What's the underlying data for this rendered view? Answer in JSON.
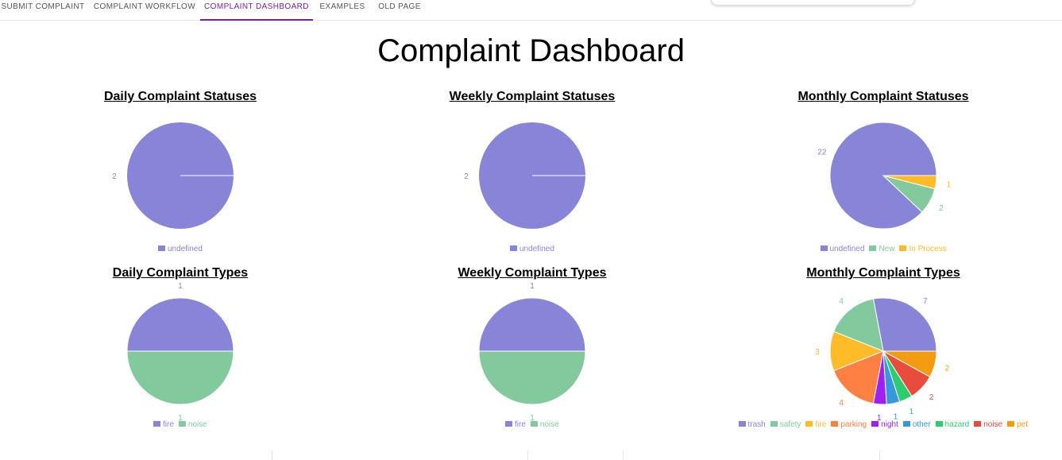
{
  "nav": {
    "tabs": [
      {
        "label": "SUBMIT COMPLAINT",
        "active": false
      },
      {
        "label": "COMPLAINT WORKFLOW",
        "active": false
      },
      {
        "label": "COMPLAINT DASHBOARD",
        "active": true
      },
      {
        "label": "EXAMPLES",
        "active": false
      },
      {
        "label": "OLD PAGE",
        "active": false
      }
    ]
  },
  "page": {
    "title": "Complaint Dashboard"
  },
  "colors": {
    "purple": "#8884d8",
    "green": "#82ca9d",
    "yellow": "#ffbb28",
    "orange": "#ff8042",
    "violet": "#a020f0",
    "blue": "#3498db",
    "emerald": "#2ecc71",
    "red": "#e74c3c",
    "amber": "#f39c12"
  },
  "chart_data": [
    {
      "id": "daily-statuses",
      "type": "pie",
      "title": "Daily Complaint Statuses",
      "slices": [
        {
          "name": "undefined",
          "value": 2,
          "color": "#8884d8"
        }
      ]
    },
    {
      "id": "weekly-statuses",
      "type": "pie",
      "title": "Weekly Complaint Statuses",
      "slices": [
        {
          "name": "undefined",
          "value": 2,
          "color": "#8884d8"
        }
      ]
    },
    {
      "id": "monthly-statuses",
      "type": "pie",
      "title": "Monthly Complaint Statuses",
      "slices": [
        {
          "name": "undefined",
          "value": 22,
          "color": "#8884d8"
        },
        {
          "name": "New",
          "value": 2,
          "color": "#82ca9d"
        },
        {
          "name": "In Process",
          "value": 1,
          "color": "#ffbb28"
        }
      ]
    },
    {
      "id": "daily-types",
      "type": "pie",
      "title": "Daily Complaint Types",
      "slices": [
        {
          "name": "fire",
          "value": 1,
          "color": "#8884d8"
        },
        {
          "name": "noise",
          "value": 1,
          "color": "#82ca9d"
        }
      ]
    },
    {
      "id": "weekly-types",
      "type": "pie",
      "title": "Weekly Complaint Types",
      "slices": [
        {
          "name": "fire",
          "value": 1,
          "color": "#8884d8"
        },
        {
          "name": "noise",
          "value": 1,
          "color": "#82ca9d"
        }
      ]
    },
    {
      "id": "monthly-types",
      "type": "pie",
      "title": "Monthly Complaint Types",
      "slices": [
        {
          "name": "trash",
          "value": 7,
          "color": "#8884d8"
        },
        {
          "name": "safety",
          "value": 4,
          "color": "#82ca9d"
        },
        {
          "name": "fire",
          "value": 3,
          "color": "#ffbb28"
        },
        {
          "name": "parking",
          "value": 4,
          "color": "#ff8042"
        },
        {
          "name": "night",
          "value": 1,
          "color": "#a020f0"
        },
        {
          "name": "other",
          "value": 1,
          "color": "#3498db"
        },
        {
          "name": "hazard",
          "value": 1,
          "color": "#2ecc71"
        },
        {
          "name": "noise",
          "value": 2,
          "color": "#e74c3c"
        },
        {
          "name": "pet",
          "value": 2,
          "color": "#f39c12"
        }
      ]
    }
  ]
}
